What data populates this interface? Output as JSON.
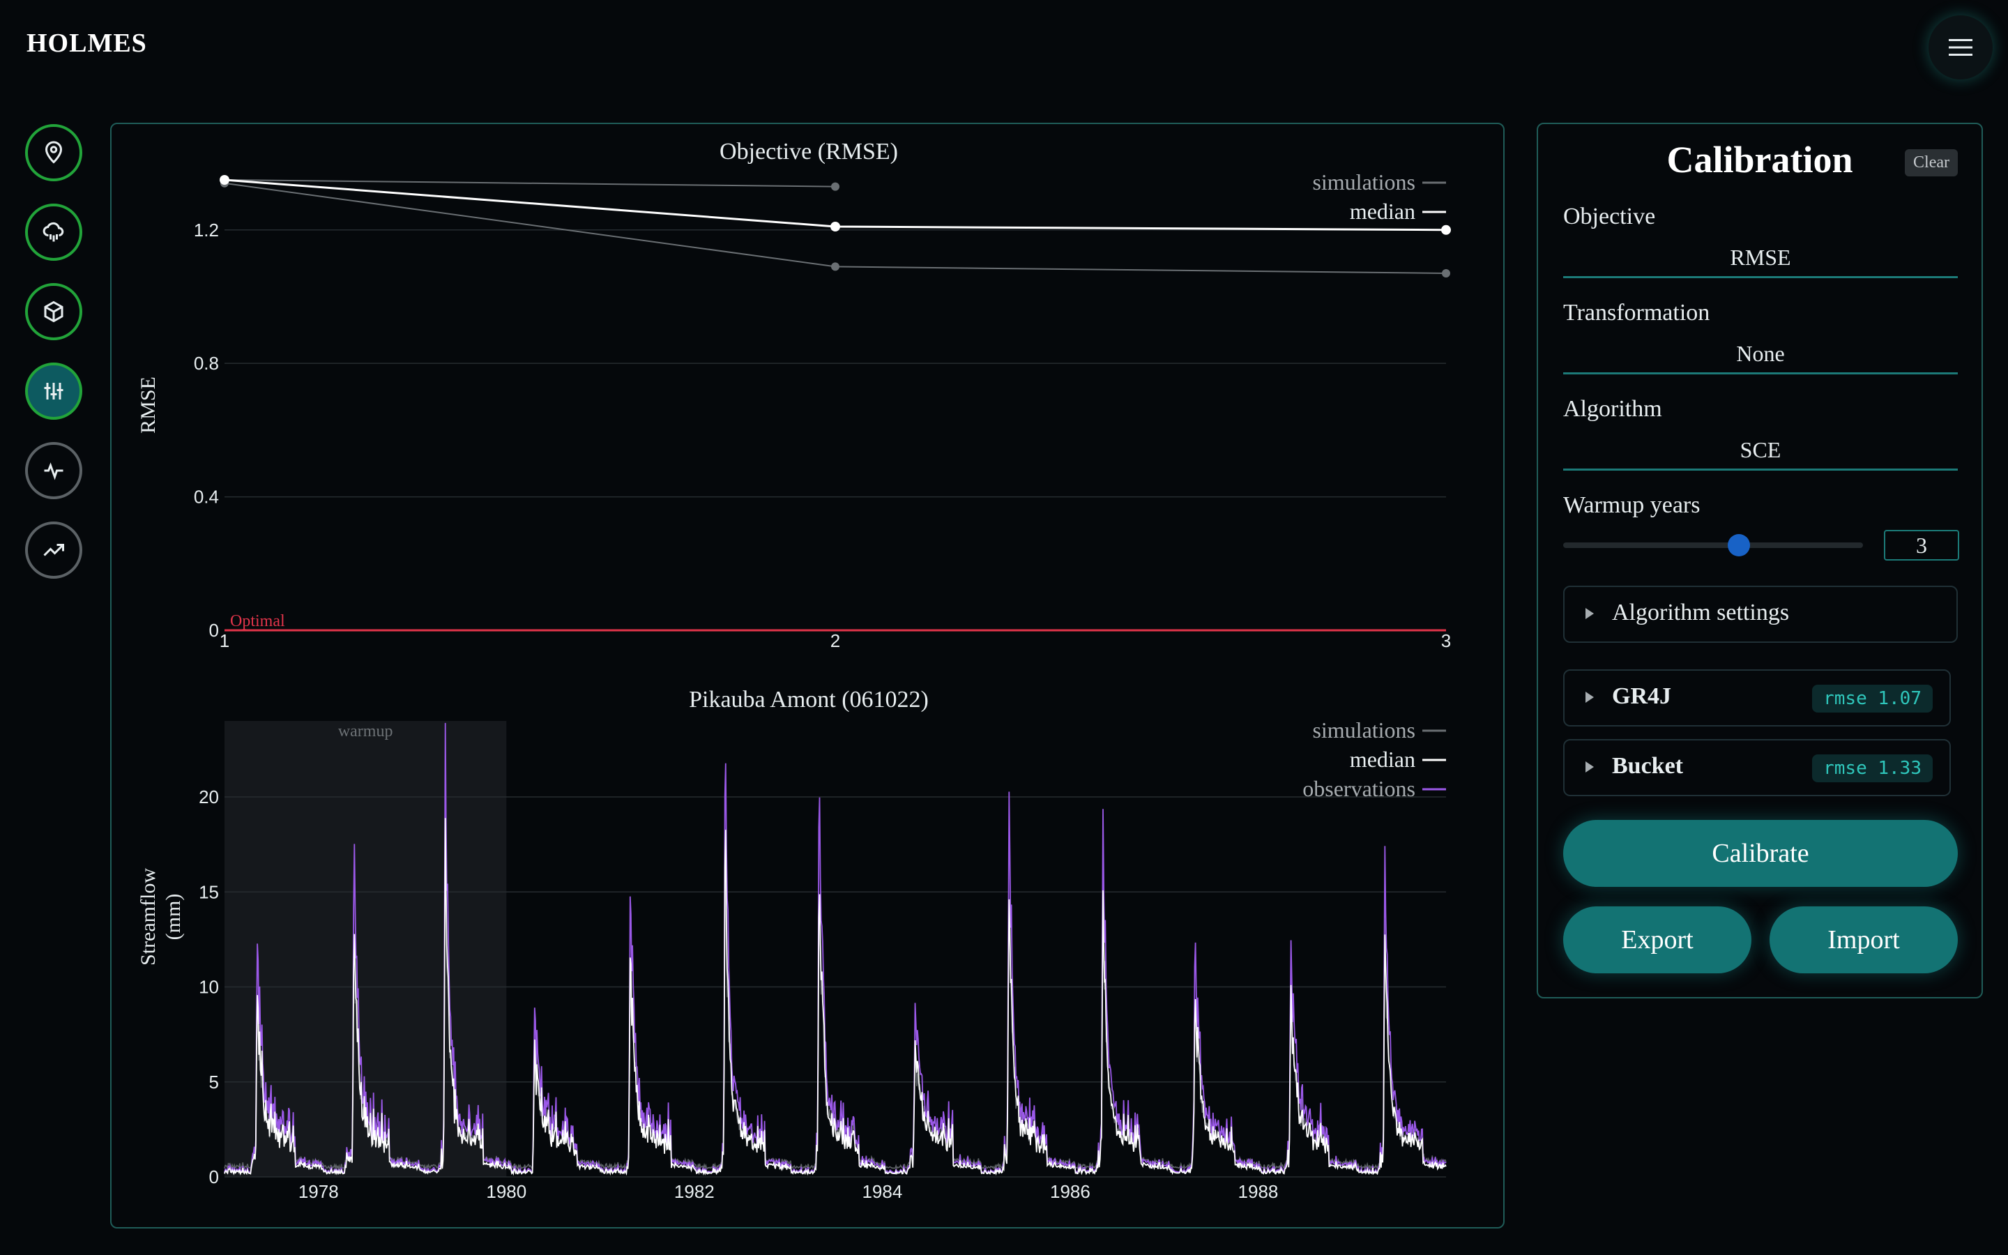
{
  "app": {
    "title": "HOLMES"
  },
  "nav": {
    "items": [
      {
        "name": "location",
        "icon": "map-pin-icon"
      },
      {
        "name": "hydro-data",
        "icon": "cloud-rain-icon"
      },
      {
        "name": "model",
        "icon": "cube-icon"
      },
      {
        "name": "calibration",
        "icon": "sliders-icon",
        "active": true
      },
      {
        "name": "simulation",
        "icon": "activity-icon"
      },
      {
        "name": "projection",
        "icon": "trending-up-icon"
      }
    ],
    "menu_icon": "hamburger-menu-icon"
  },
  "calibration": {
    "title": "Calibration",
    "clear_label": "Clear",
    "objective": {
      "label": "Objective",
      "value": "RMSE"
    },
    "transformation": {
      "label": "Transformation",
      "value": "None"
    },
    "algorithm": {
      "label": "Algorithm",
      "value": "SCE"
    },
    "warmup": {
      "label": "Warmup years",
      "value": "3",
      "slider_fraction": 0.6
    },
    "algorithm_settings_label": "Algorithm settings",
    "models": [
      {
        "name": "GR4J",
        "badge": "rmse 1.07"
      },
      {
        "name": "Bucket",
        "badge": "rmse 1.33"
      }
    ],
    "calibrate_label": "Calibrate",
    "export_label": "Export",
    "import_label": "Import"
  },
  "colors": {
    "accent": "#137373",
    "observations": "#9b59e8",
    "optimal": "#e0344a",
    "nav_border": "#22a43a"
  },
  "chart_data": [
    {
      "type": "line",
      "title": "Objective (RMSE)",
      "ylabel": "RMSE",
      "xlabel": "",
      "x": [
        1,
        2,
        3
      ],
      "xlim": [
        1,
        3
      ],
      "ylim": [
        0,
        1.35
      ],
      "yticks": [
        "0",
        "0.4",
        "0.8",
        "1.2"
      ],
      "xticks": [
        "1",
        "2",
        "3"
      ],
      "series": [
        {
          "name": "simulations",
          "values": [
            1.35,
            1.33,
            null
          ]
        },
        {
          "name": "simulations",
          "values": [
            1.34,
            1.09,
            1.07
          ]
        },
        {
          "name": "median",
          "values": [
            1.35,
            1.21,
            1.2
          ]
        }
      ],
      "legend": [
        "simulations",
        "median"
      ],
      "optimal": {
        "label": "Optimal",
        "value": 0
      },
      "legend_position": "top-right",
      "grid": true
    },
    {
      "type": "line",
      "title": "Pikauba Amont (061022)",
      "ylabel": "Streamflow (mm)",
      "ylabel_lines": [
        "Streamflow",
        "(mm)"
      ],
      "xlim": [
        1977.0,
        1990.0
      ],
      "ylim": [
        0,
        24
      ],
      "yticks": [
        "0",
        "5",
        "10",
        "15",
        "20"
      ],
      "xticks": [
        "1978",
        "1980",
        "1982",
        "1984",
        "1986",
        "1988"
      ],
      "legend": [
        "simulations",
        "median",
        "observations"
      ],
      "warmup": {
        "label": "warmup",
        "start": 1977.0,
        "end": 1980.0
      },
      "peaks_observed": [
        {
          "x": 1977.35,
          "y": 11.6
        },
        {
          "x": 1978.38,
          "y": 18.0
        },
        {
          "x": 1979.35,
          "y": 22.9
        },
        {
          "x": 1980.3,
          "y": 8.1
        },
        {
          "x": 1981.32,
          "y": 15.0
        },
        {
          "x": 1982.33,
          "y": 23.1
        },
        {
          "x": 1983.33,
          "y": 21.1
        },
        {
          "x": 1984.35,
          "y": 7.8
        },
        {
          "x": 1985.35,
          "y": 19.6
        },
        {
          "x": 1986.35,
          "y": 17.8
        },
        {
          "x": 1987.33,
          "y": 12.5
        },
        {
          "x": 1988.35,
          "y": 11.8
        },
        {
          "x": 1989.35,
          "y": 16.3
        }
      ],
      "legend_position": "top-right",
      "grid": true
    }
  ]
}
